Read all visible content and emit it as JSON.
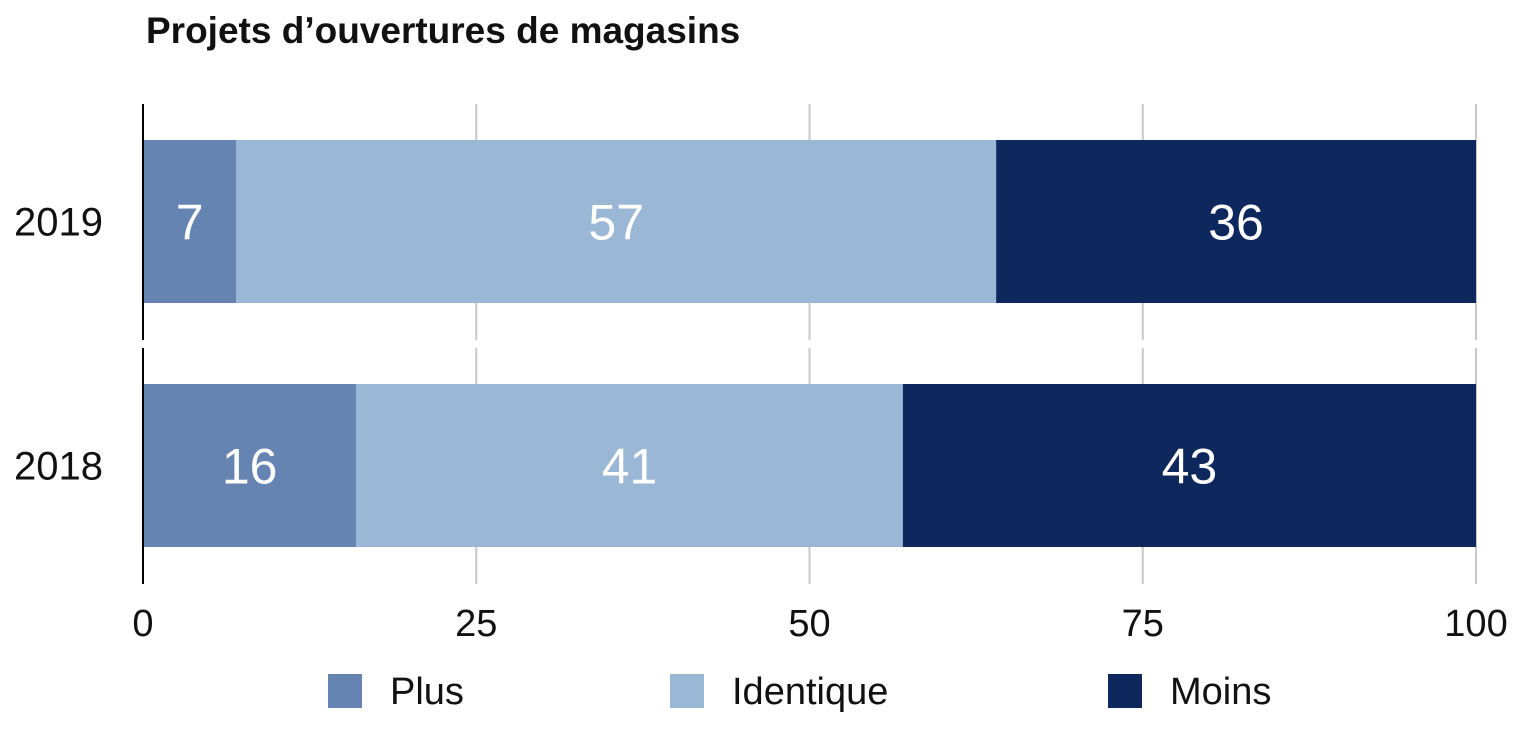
{
  "chart_data": {
    "type": "bar",
    "orientation": "horizontal",
    "stacked": true,
    "title": "Projets d’ouvertures de magasins",
    "categories": [
      "2019",
      "2018"
    ],
    "series": [
      {
        "name": "Plus",
        "values": [
          7,
          16
        ],
        "color": "#6584b1"
      },
      {
        "name": "Identique",
        "values": [
          57,
          41
        ],
        "color": "#9ab8d6"
      },
      {
        "name": "Moins",
        "values": [
          36,
          43
        ],
        "color": "#0e285e"
      }
    ],
    "xlim": [
      0,
      100
    ],
    "xticks": [
      "0",
      "25",
      "50",
      "75",
      "100"
    ],
    "grid": true,
    "legend_position": "bottom"
  }
}
